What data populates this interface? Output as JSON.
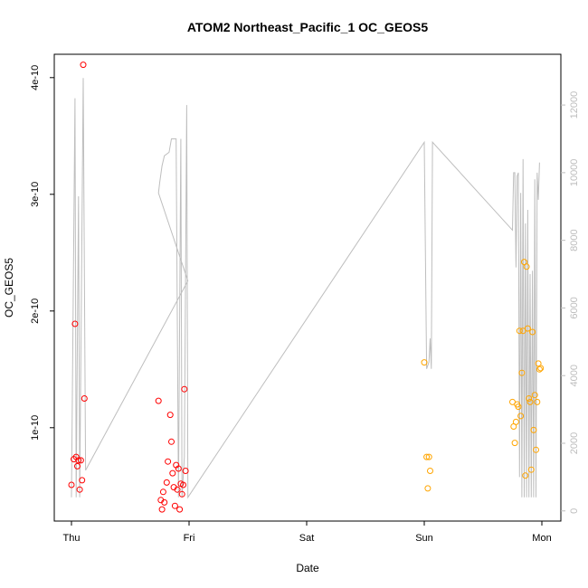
{
  "chart_data": {
    "type": "scatter",
    "title": "ATOM2 Northeast_Pacific_1 OC_GEOS5",
    "xlabel": "Date",
    "ylabel": "OC_GEOS5",
    "x_ticks": [
      "Thu",
      "Fri",
      "Sat",
      "Sun",
      "Mon"
    ],
    "y_ticks": [
      "1e-10",
      "2e-10",
      "3e-10",
      "4e-10"
    ],
    "y_tick_values": [
      1e-10,
      2e-10,
      3e-10,
      4e-10
    ],
    "y2_ticks": [
      "0",
      "2000",
      "4000",
      "6000",
      "8000",
      "10000",
      "12000"
    ],
    "y2_tick_values": [
      0,
      2000,
      4000,
      6000,
      8000,
      10000,
      12000
    ],
    "xlim_days": [
      -0.12,
      4.12
    ],
    "ylim": [
      2e-11,
      4.2e-10
    ],
    "y2lim": [
      -300,
      13500
    ],
    "colors": {
      "red": "#ff0000",
      "orange": "#ffa500",
      "line": "#bebebe",
      "axis": "#000000",
      "right_axis": "#bdbdbd"
    },
    "series": [
      {
        "color": "red",
        "points": [
          [
            0.0,
            5.1e-11
          ],
          [
            0.02,
            7.3e-11
          ],
          [
            0.03,
            1.89e-10
          ],
          [
            0.04,
            7.5e-11
          ],
          [
            0.05,
            6.7e-11
          ],
          [
            0.06,
            7.2e-11
          ],
          [
            0.07,
            4.7e-11
          ],
          [
            0.08,
            7.2e-11
          ],
          [
            0.09,
            5.5e-11
          ],
          [
            0.1,
            4.11e-10
          ],
          [
            0.11,
            1.25e-10
          ],
          [
            0.74,
            1.23e-10
          ],
          [
            0.76,
            3.8e-11
          ],
          [
            0.77,
            3e-11
          ],
          [
            0.78,
            4.5e-11
          ],
          [
            0.79,
            3.6e-11
          ],
          [
            0.81,
            5.3e-11
          ],
          [
            0.82,
            7.1e-11
          ],
          [
            0.84,
            1.11e-10
          ],
          [
            0.85,
            8.8e-11
          ],
          [
            0.86,
            6.1e-11
          ],
          [
            0.87,
            4.9e-11
          ],
          [
            0.88,
            3.3e-11
          ],
          [
            0.89,
            6.8e-11
          ],
          [
            0.9,
            4.7e-11
          ],
          [
            0.91,
            6.5e-11
          ],
          [
            0.92,
            3e-11
          ],
          [
            0.93,
            5.2e-11
          ],
          [
            0.94,
            4.3e-11
          ],
          [
            0.95,
            5.1e-11
          ],
          [
            0.96,
            1.33e-10
          ],
          [
            0.97,
            6.3e-11
          ]
        ]
      },
      {
        "color": "orange",
        "points": [
          [
            3.0,
            1.56e-10
          ],
          [
            3.02,
            7.5e-11
          ],
          [
            3.03,
            4.8e-11
          ],
          [
            3.04,
            7.5e-11
          ],
          [
            3.05,
            6.3e-11
          ],
          [
            3.75,
            1.22e-10
          ],
          [
            3.76,
            1.01e-10
          ],
          [
            3.77,
            8.7e-11
          ],
          [
            3.78,
            1.05e-10
          ],
          [
            3.79,
            1.2e-10
          ],
          [
            3.8,
            1.18e-10
          ],
          [
            3.81,
            1.83e-10
          ],
          [
            3.82,
            1.1e-10
          ],
          [
            3.83,
            1.47e-10
          ],
          [
            3.84,
            1.83e-10
          ],
          [
            3.85,
            2.42e-10
          ],
          [
            3.86,
            5.9e-11
          ],
          [
            3.87,
            2.38e-10
          ],
          [
            3.88,
            1.85e-10
          ],
          [
            3.89,
            1.25e-10
          ],
          [
            3.9,
            1.22e-10
          ],
          [
            3.91,
            6.4e-11
          ],
          [
            3.92,
            1.82e-10
          ],
          [
            3.93,
            9.8e-11
          ],
          [
            3.94,
            1.28e-10
          ],
          [
            3.95,
            8.1e-11
          ],
          [
            3.96,
            1.22e-10
          ],
          [
            3.97,
            1.55e-10
          ],
          [
            3.98,
            1.5e-10
          ],
          [
            3.99,
            1.51e-10
          ]
        ]
      }
    ],
    "altitude_line": [
      [
        0.0,
        400
      ],
      [
        0.03,
        12200
      ],
      [
        0.04,
        400
      ],
      [
        0.06,
        9300
      ],
      [
        0.07,
        400
      ],
      [
        0.1,
        12800
      ],
      [
        0.12,
        1200
      ],
      [
        0.99,
        6800
      ],
      [
        0.74,
        9400
      ],
      [
        0.75,
        9700
      ],
      [
        0.77,
        10200
      ],
      [
        0.79,
        10500
      ],
      [
        0.83,
        10600
      ],
      [
        0.85,
        11000
      ],
      [
        0.89,
        11000
      ],
      [
        0.91,
        400
      ],
      [
        0.93,
        11000
      ],
      [
        0.94,
        400
      ],
      [
        0.96,
        1600
      ],
      [
        0.98,
        12000
      ],
      [
        0.99,
        400
      ],
      [
        3.0,
        10900
      ],
      [
        3.02,
        4200
      ],
      [
        3.04,
        4400
      ],
      [
        3.05,
        5100
      ],
      [
        3.06,
        4200
      ],
      [
        3.07,
        10900
      ],
      [
        3.75,
        8300
      ],
      [
        3.76,
        10000
      ],
      [
        3.77,
        10000
      ],
      [
        3.78,
        7200
      ],
      [
        3.79,
        9900
      ],
      [
        3.8,
        10000
      ],
      [
        3.81,
        1000
      ],
      [
        3.82,
        9400
      ],
      [
        3.83,
        400
      ],
      [
        3.84,
        10400
      ],
      [
        3.85,
        400
      ],
      [
        3.86,
        8500
      ],
      [
        3.87,
        400
      ],
      [
        3.88,
        8900
      ],
      [
        3.89,
        400
      ],
      [
        3.9,
        7000
      ],
      [
        3.91,
        400
      ],
      [
        3.92,
        7100
      ],
      [
        3.93,
        400
      ],
      [
        3.94,
        9800
      ],
      [
        3.95,
        400
      ],
      [
        3.96,
        10000
      ],
      [
        3.97,
        9200
      ],
      [
        3.98,
        10300
      ]
    ]
  }
}
